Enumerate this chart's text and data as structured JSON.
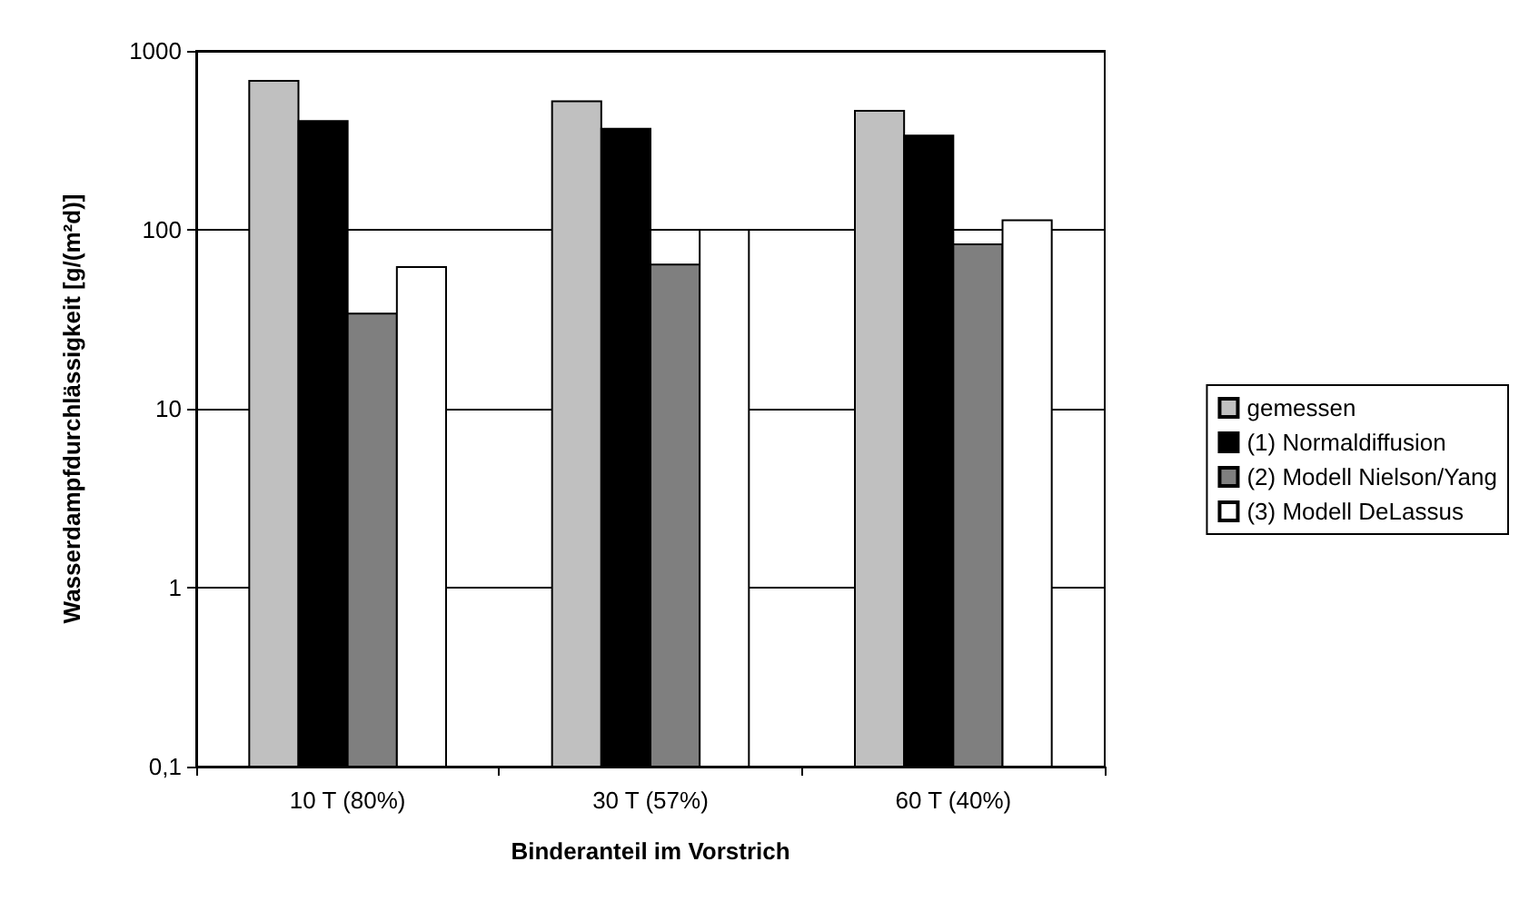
{
  "chart_data": {
    "type": "bar",
    "xlabel": "Binderanteil im Vorstrich",
    "ylabel": "Wasserdampfdurchlässigkeit [g/(m²d)]",
    "categories": [
      "10 T (80%)",
      "30 T (57%)",
      "60 T (40%)"
    ],
    "series": [
      {
        "name": "gemessen",
        "color": "#c0c0c0",
        "values": [
          680,
          522,
          463
        ]
      },
      {
        "name": "(1) Normaldiffusion",
        "color": "#000000",
        "values": [
          405,
          367,
          336
        ]
      },
      {
        "name": "(2) Modell Nielson/Yang",
        "color": "#7f7f7f",
        "values": [
          34,
          64,
          83
        ]
      },
      {
        "name": "(3) Modell DeLassus",
        "color": "#ffffff",
        "values": [
          62,
          100,
          113
        ]
      }
    ],
    "log": "y",
    "ylim": [
      0.1,
      1000
    ],
    "yticks": [
      {
        "value": 0.1,
        "label": "0,1"
      },
      1,
      10,
      100,
      1000
    ],
    "grid": "y",
    "legend": "right"
  }
}
